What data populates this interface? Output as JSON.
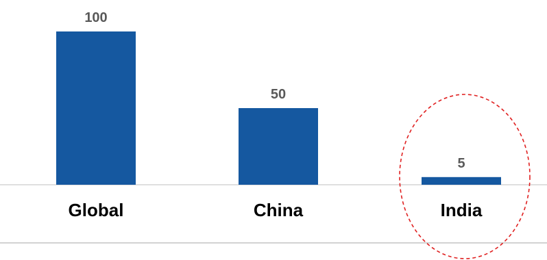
{
  "chart_data": {
    "type": "bar",
    "categories": [
      "Global",
      "China",
      "India"
    ],
    "values": [
      100,
      50,
      5
    ],
    "title": "",
    "xlabel": "",
    "ylabel": "",
    "ylim": [
      0,
      100
    ],
    "grid": false,
    "bar_color": "#1558A0",
    "value_label_color": "#595959",
    "category_label_color": "#000000",
    "axis_color": "#BFBFBF",
    "highlight": {
      "category": "India",
      "shape": "dashed-ellipse",
      "color": "#E02020"
    }
  }
}
